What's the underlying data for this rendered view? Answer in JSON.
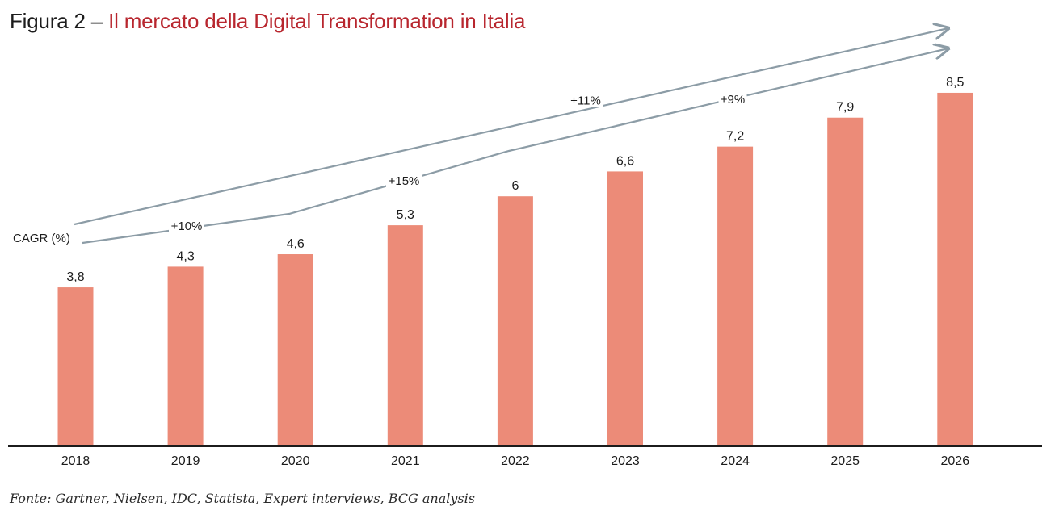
{
  "header": {
    "figure_label": "Figura 2 – ",
    "title": "Il mercato della Digital Transformation in Italia"
  },
  "source": "Fonte: Gartner, Nielsen, IDC, Statista, Expert interviews, BCG analysis",
  "chart_data": {
    "type": "bar",
    "categories": [
      "2018",
      "2019",
      "2020",
      "2021",
      "2022",
      "2023",
      "2024",
      "2025",
      "2026"
    ],
    "values": [
      3.8,
      4.3,
      4.6,
      5.3,
      6,
      6.6,
      7.2,
      7.9,
      8.5
    ],
    "value_labels": [
      "3,8",
      "4,3",
      "4,6",
      "5,3",
      "6",
      "6,6",
      "7,2",
      "7,9",
      "8,5"
    ],
    "ylim": [
      0,
      9
    ],
    "bar_color": "#ec8b78",
    "axis_color": "#1c1c1c",
    "arrow_color": "#8c9ca6",
    "cagr_label": "CAGR (%)",
    "cagr": {
      "overall": {
        "label": "+11%",
        "from": "2018",
        "to": "2026"
      },
      "segments": [
        {
          "label": "+10%",
          "from": "2018",
          "to": "2020"
        },
        {
          "label": "+15%",
          "from": "2020",
          "to": "2022"
        },
        {
          "label": "+9%",
          "from": "2022",
          "to": "2026"
        }
      ]
    },
    "grid": false,
    "legend": "none"
  }
}
